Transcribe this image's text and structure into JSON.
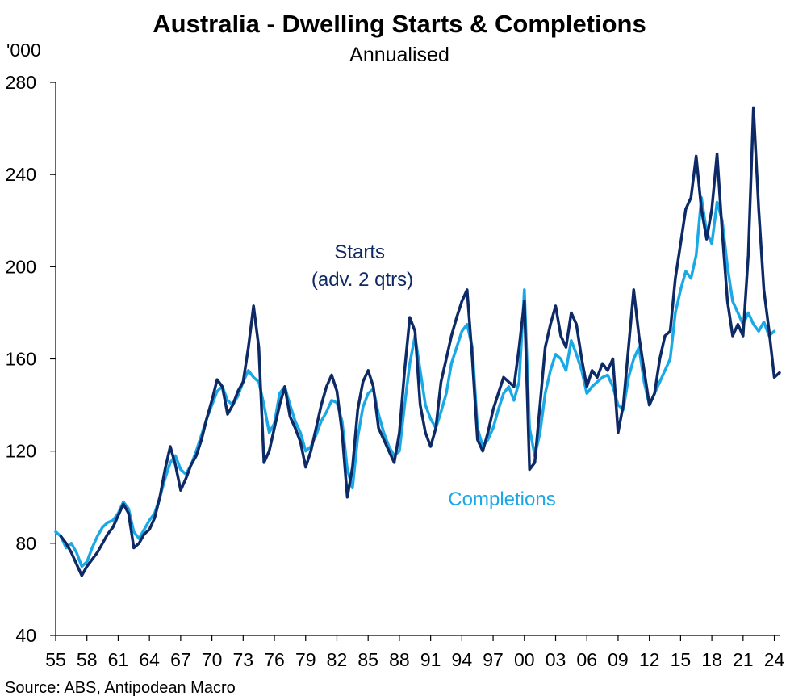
{
  "chart_data": {
    "type": "line",
    "title": "Australia - Dwelling Starts & Completions",
    "subtitle": "Annualised",
    "ylabel": "'000",
    "xlabel": "",
    "ylim": [
      40,
      280
    ],
    "yticks": [
      40,
      80,
      120,
      160,
      200,
      240,
      280
    ],
    "xlim": [
      1955,
      2024.5
    ],
    "xticks": [
      {
        "year": 1955,
        "label": "55"
      },
      {
        "year": 1958,
        "label": "58"
      },
      {
        "year": 1961,
        "label": "61"
      },
      {
        "year": 1964,
        "label": "64"
      },
      {
        "year": 1967,
        "label": "67"
      },
      {
        "year": 1970,
        "label": "70"
      },
      {
        "year": 1973,
        "label": "73"
      },
      {
        "year": 1976,
        "label": "76"
      },
      {
        "year": 1979,
        "label": "79"
      },
      {
        "year": 1982,
        "label": "82"
      },
      {
        "year": 1985,
        "label": "85"
      },
      {
        "year": 1988,
        "label": "88"
      },
      {
        "year": 1991,
        "label": "91"
      },
      {
        "year": 1994,
        "label": "94"
      },
      {
        "year": 1997,
        "label": "97"
      },
      {
        "year": 2000,
        "label": "00"
      },
      {
        "year": 2003,
        "label": "03"
      },
      {
        "year": 2006,
        "label": "06"
      },
      {
        "year": 2009,
        "label": "09"
      },
      {
        "year": 2012,
        "label": "12"
      },
      {
        "year": 2015,
        "label": "15"
      },
      {
        "year": 2018,
        "label": "18"
      },
      {
        "year": 2021,
        "label": "21"
      },
      {
        "year": 2024,
        "label": "24"
      }
    ],
    "series": [
      {
        "name": "Starts (adv. 2 qtrs)",
        "label_lines": [
          "Starts",
          "(adv. 2 qtrs)"
        ],
        "color": "#0d2a66",
        "points": [
          [
            1955.5,
            83
          ],
          [
            1956.0,
            80
          ],
          [
            1956.5,
            76
          ],
          [
            1957.0,
            71
          ],
          [
            1957.5,
            66
          ],
          [
            1958.0,
            70
          ],
          [
            1958.5,
            73
          ],
          [
            1959.0,
            76
          ],
          [
            1959.5,
            80
          ],
          [
            1960.0,
            84
          ],
          [
            1960.5,
            87
          ],
          [
            1961.0,
            92
          ],
          [
            1961.5,
            97
          ],
          [
            1962.0,
            93
          ],
          [
            1962.5,
            78
          ],
          [
            1963.0,
            80
          ],
          [
            1963.5,
            84
          ],
          [
            1964.0,
            86
          ],
          [
            1964.5,
            91
          ],
          [
            1965.0,
            100
          ],
          [
            1965.5,
            112
          ],
          [
            1966.0,
            122
          ],
          [
            1966.5,
            114
          ],
          [
            1967.0,
            103
          ],
          [
            1967.5,
            108
          ],
          [
            1968.0,
            114
          ],
          [
            1968.5,
            118
          ],
          [
            1969.0,
            125
          ],
          [
            1969.5,
            134
          ],
          [
            1970.0,
            142
          ],
          [
            1970.5,
            151
          ],
          [
            1971.0,
            148
          ],
          [
            1971.5,
            136
          ],
          [
            1972.0,
            140
          ],
          [
            1972.5,
            146
          ],
          [
            1973.0,
            150
          ],
          [
            1973.5,
            165
          ],
          [
            1974.0,
            183
          ],
          [
            1974.5,
            165
          ],
          [
            1975.0,
            115
          ],
          [
            1975.5,
            120
          ],
          [
            1976.0,
            130
          ],
          [
            1976.5,
            140
          ],
          [
            1977.0,
            148
          ],
          [
            1977.5,
            135
          ],
          [
            1978.0,
            130
          ],
          [
            1978.5,
            124
          ],
          [
            1979.0,
            113
          ],
          [
            1979.5,
            120
          ],
          [
            1980.0,
            130
          ],
          [
            1980.5,
            140
          ],
          [
            1981.0,
            148
          ],
          [
            1981.5,
            153
          ],
          [
            1982.0,
            146
          ],
          [
            1982.5,
            128
          ],
          [
            1983.0,
            100
          ],
          [
            1983.5,
            113
          ],
          [
            1984.0,
            138
          ],
          [
            1984.5,
            150
          ],
          [
            1985.0,
            155
          ],
          [
            1985.5,
            148
          ],
          [
            1986.0,
            130
          ],
          [
            1986.5,
            125
          ],
          [
            1987.0,
            120
          ],
          [
            1987.5,
            115
          ],
          [
            1988.0,
            128
          ],
          [
            1988.5,
            155
          ],
          [
            1989.0,
            178
          ],
          [
            1989.5,
            172
          ],
          [
            1990.0,
            140
          ],
          [
            1990.5,
            128
          ],
          [
            1991.0,
            122
          ],
          [
            1991.5,
            130
          ],
          [
            1992.0,
            150
          ],
          [
            1992.5,
            160
          ],
          [
            1993.0,
            170
          ],
          [
            1993.5,
            178
          ],
          [
            1994.0,
            185
          ],
          [
            1994.5,
            190
          ],
          [
            1995.0,
            160
          ],
          [
            1995.5,
            125
          ],
          [
            1996.0,
            120
          ],
          [
            1996.5,
            128
          ],
          [
            1997.0,
            138
          ],
          [
            1997.5,
            145
          ],
          [
            1998.0,
            152
          ],
          [
            1998.5,
            150
          ],
          [
            1999.0,
            148
          ],
          [
            1999.5,
            165
          ],
          [
            2000.0,
            185
          ],
          [
            2000.5,
            112
          ],
          [
            2001.0,
            115
          ],
          [
            2001.5,
            140
          ],
          [
            2002.0,
            165
          ],
          [
            2002.5,
            175
          ],
          [
            2003.0,
            183
          ],
          [
            2003.5,
            170
          ],
          [
            2004.0,
            165
          ],
          [
            2004.5,
            180
          ],
          [
            2005.0,
            175
          ],
          [
            2005.5,
            160
          ],
          [
            2006.0,
            148
          ],
          [
            2006.5,
            155
          ],
          [
            2007.0,
            152
          ],
          [
            2007.5,
            158
          ],
          [
            2008.0,
            155
          ],
          [
            2008.5,
            160
          ],
          [
            2009.0,
            128
          ],
          [
            2009.5,
            140
          ],
          [
            2010.0,
            165
          ],
          [
            2010.5,
            190
          ],
          [
            2011.0,
            170
          ],
          [
            2011.5,
            155
          ],
          [
            2012.0,
            140
          ],
          [
            2012.5,
            145
          ],
          [
            2013.0,
            160
          ],
          [
            2013.5,
            170
          ],
          [
            2014.0,
            172
          ],
          [
            2014.5,
            195
          ],
          [
            2015.0,
            210
          ],
          [
            2015.5,
            225
          ],
          [
            2016.0,
            230
          ],
          [
            2016.5,
            248
          ],
          [
            2017.0,
            225
          ],
          [
            2017.5,
            212
          ],
          [
            2018.0,
            225
          ],
          [
            2018.5,
            249
          ],
          [
            2019.0,
            215
          ],
          [
            2019.5,
            185
          ],
          [
            2020.0,
            170
          ],
          [
            2020.5,
            175
          ],
          [
            2021.0,
            170
          ],
          [
            2021.5,
            205
          ],
          [
            2022.0,
            269
          ],
          [
            2022.5,
            225
          ],
          [
            2023.0,
            190
          ],
          [
            2023.5,
            172
          ],
          [
            2024.0,
            152
          ],
          [
            2024.5,
            154
          ]
        ]
      },
      {
        "name": "Completions",
        "label_lines": [
          "Completions"
        ],
        "color": "#1aa9e6",
        "points": [
          [
            1955.0,
            85
          ],
          [
            1955.5,
            83
          ],
          [
            1956.0,
            78
          ],
          [
            1956.5,
            80
          ],
          [
            1957.0,
            76
          ],
          [
            1957.5,
            70
          ],
          [
            1958.0,
            72
          ],
          [
            1958.5,
            78
          ],
          [
            1959.0,
            83
          ],
          [
            1959.5,
            87
          ],
          [
            1960.0,
            89
          ],
          [
            1960.5,
            90
          ],
          [
            1961.0,
            93
          ],
          [
            1961.5,
            98
          ],
          [
            1962.0,
            95
          ],
          [
            1962.5,
            85
          ],
          [
            1963.0,
            82
          ],
          [
            1963.5,
            86
          ],
          [
            1964.0,
            90
          ],
          [
            1964.5,
            93
          ],
          [
            1965.0,
            100
          ],
          [
            1965.5,
            108
          ],
          [
            1966.0,
            115
          ],
          [
            1966.5,
            118
          ],
          [
            1967.0,
            112
          ],
          [
            1967.5,
            110
          ],
          [
            1968.0,
            114
          ],
          [
            1968.5,
            120
          ],
          [
            1969.0,
            127
          ],
          [
            1969.5,
            134
          ],
          [
            1970.0,
            140
          ],
          [
            1970.5,
            146
          ],
          [
            1971.0,
            148
          ],
          [
            1971.5,
            142
          ],
          [
            1972.0,
            140
          ],
          [
            1972.5,
            144
          ],
          [
            1973.0,
            150
          ],
          [
            1973.5,
            155
          ],
          [
            1974.0,
            152
          ],
          [
            1974.5,
            150
          ],
          [
            1975.0,
            140
          ],
          [
            1975.5,
            128
          ],
          [
            1976.0,
            132
          ],
          [
            1976.5,
            145
          ],
          [
            1977.0,
            148
          ],
          [
            1977.5,
            140
          ],
          [
            1978.0,
            133
          ],
          [
            1978.5,
            128
          ],
          [
            1979.0,
            120
          ],
          [
            1979.5,
            122
          ],
          [
            1980.0,
            127
          ],
          [
            1980.5,
            133
          ],
          [
            1981.0,
            137
          ],
          [
            1981.5,
            142
          ],
          [
            1982.0,
            141
          ],
          [
            1982.5,
            133
          ],
          [
            1983.0,
            112
          ],
          [
            1983.5,
            104
          ],
          [
            1984.0,
            126
          ],
          [
            1984.5,
            139
          ],
          [
            1985.0,
            145
          ],
          [
            1985.5,
            147
          ],
          [
            1986.0,
            136
          ],
          [
            1986.5,
            128
          ],
          [
            1987.0,
            122
          ],
          [
            1987.5,
            118
          ],
          [
            1988.0,
            120
          ],
          [
            1988.5,
            140
          ],
          [
            1989.0,
            158
          ],
          [
            1989.5,
            170
          ],
          [
            1990.0,
            155
          ],
          [
            1990.5,
            140
          ],
          [
            1991.0,
            134
          ],
          [
            1991.5,
            130
          ],
          [
            1992.0,
            137
          ],
          [
            1992.5,
            145
          ],
          [
            1993.0,
            158
          ],
          [
            1993.5,
            165
          ],
          [
            1994.0,
            172
          ],
          [
            1994.5,
            175
          ],
          [
            1995.0,
            165
          ],
          [
            1995.5,
            130
          ],
          [
            1996.0,
            122
          ],
          [
            1996.5,
            125
          ],
          [
            1997.0,
            130
          ],
          [
            1997.5,
            138
          ],
          [
            1998.0,
            145
          ],
          [
            1998.5,
            148
          ],
          [
            1999.0,
            142
          ],
          [
            1999.5,
            150
          ],
          [
            2000.0,
            190
          ],
          [
            2000.5,
            130
          ],
          [
            2001.0,
            118
          ],
          [
            2001.5,
            128
          ],
          [
            2002.0,
            145
          ],
          [
            2002.5,
            155
          ],
          [
            2003.0,
            162
          ],
          [
            2003.5,
            160
          ],
          [
            2004.0,
            155
          ],
          [
            2004.5,
            168
          ],
          [
            2005.0,
            162
          ],
          [
            2005.5,
            155
          ],
          [
            2006.0,
            145
          ],
          [
            2006.5,
            148
          ],
          [
            2007.0,
            150
          ],
          [
            2007.5,
            152
          ],
          [
            2008.0,
            153
          ],
          [
            2008.5,
            148
          ],
          [
            2009.0,
            140
          ],
          [
            2009.5,
            138
          ],
          [
            2010.0,
            152
          ],
          [
            2010.5,
            160
          ],
          [
            2011.0,
            165
          ],
          [
            2011.5,
            150
          ],
          [
            2012.0,
            140
          ],
          [
            2012.5,
            145
          ],
          [
            2013.0,
            150
          ],
          [
            2013.5,
            155
          ],
          [
            2014.0,
            160
          ],
          [
            2014.5,
            180
          ],
          [
            2015.0,
            190
          ],
          [
            2015.5,
            198
          ],
          [
            2016.0,
            195
          ],
          [
            2016.5,
            205
          ],
          [
            2017.0,
            230
          ],
          [
            2017.5,
            215
          ],
          [
            2018.0,
            210
          ],
          [
            2018.5,
            228
          ],
          [
            2019.0,
            220
          ],
          [
            2019.5,
            200
          ],
          [
            2020.0,
            185
          ],
          [
            2020.5,
            180
          ],
          [
            2021.0,
            175
          ],
          [
            2021.5,
            180
          ],
          [
            2022.0,
            175
          ],
          [
            2022.5,
            172
          ],
          [
            2023.0,
            176
          ],
          [
            2023.5,
            170
          ],
          [
            2024.0,
            172
          ]
        ]
      }
    ],
    "source": "Source: ABS, Antipodean Macro"
  }
}
